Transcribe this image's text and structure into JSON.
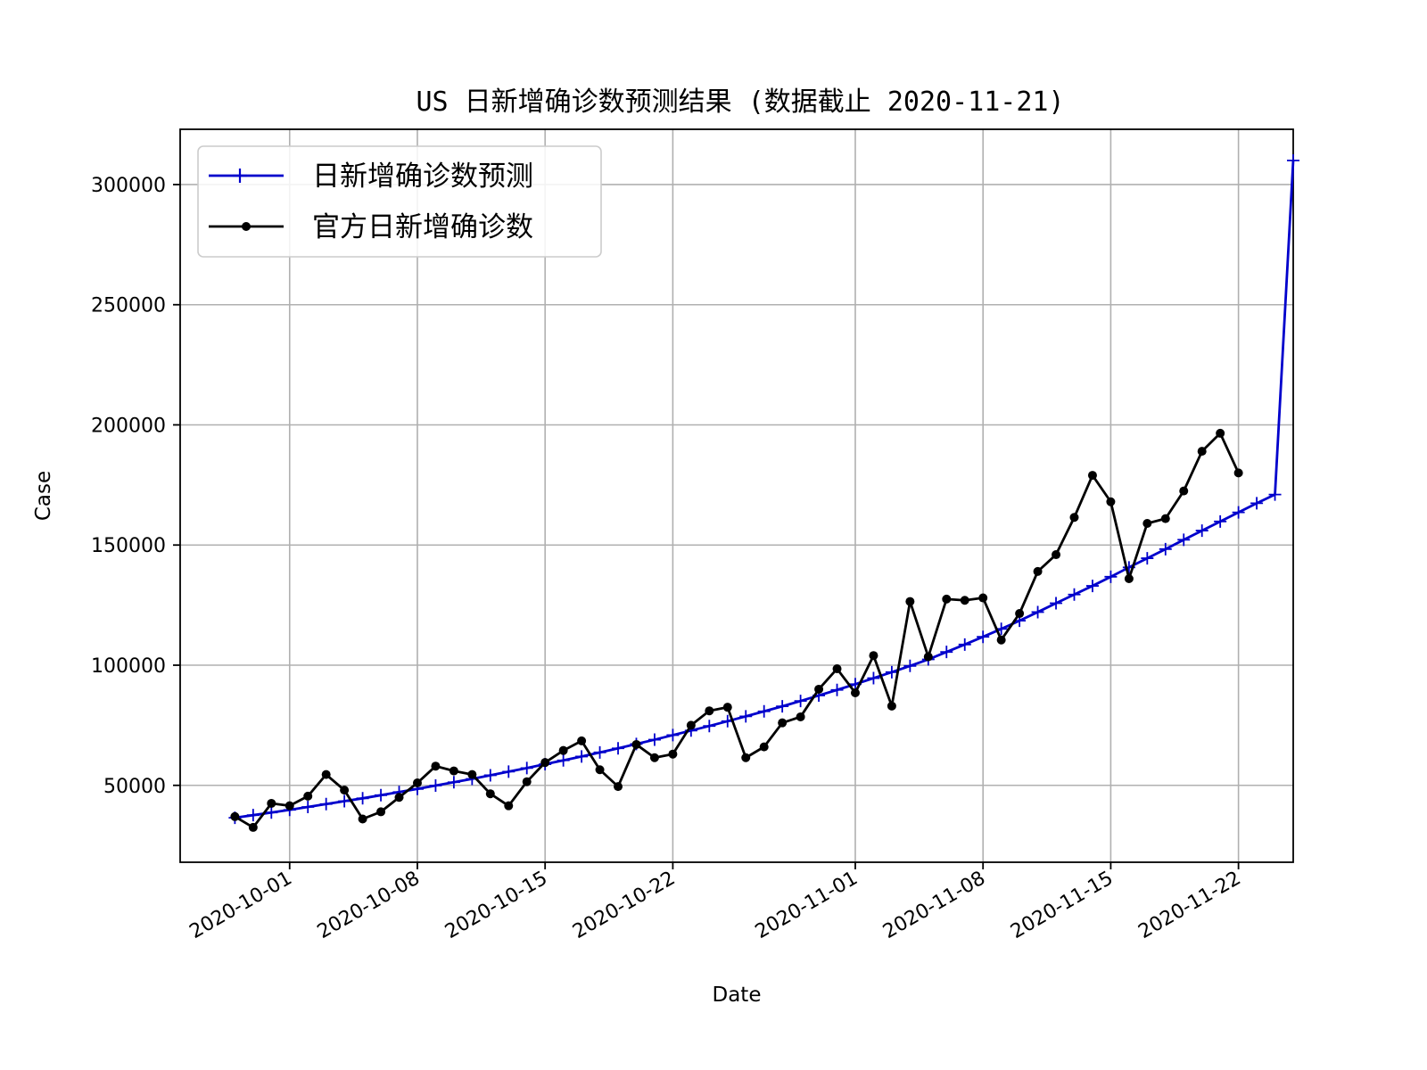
{
  "chart_data": {
    "type": "line",
    "title": "US 日新增确诊数预测结果 (数据截止 2020-11-21)",
    "xlabel": "Date",
    "ylabel": "Case",
    "x_start": "2020-09-28",
    "xlim": [
      "2020-09-25",
      "2020-11-25"
    ],
    "ylim": [
      18000,
      323000
    ],
    "x_ticks": [
      "2020-10-01",
      "2020-10-08",
      "2020-10-15",
      "2020-10-22",
      "2020-11-01",
      "2020-11-08",
      "2020-11-15",
      "2020-11-22"
    ],
    "y_ticks": [
      50000,
      100000,
      150000,
      200000,
      250000,
      300000
    ],
    "grid": true,
    "legend_position": "top-left",
    "series": [
      {
        "name": "日新增确诊数预测",
        "color": "#0000cc",
        "marker": "plus",
        "values": [
          36500,
          37600,
          38700,
          39800,
          41000,
          42200,
          43400,
          44600,
          45900,
          47200,
          48500,
          49900,
          51300,
          52700,
          54200,
          55700,
          57200,
          58800,
          60400,
          62000,
          63700,
          65400,
          67200,
          69000,
          70900,
          72800,
          74700,
          76700,
          78700,
          80800,
          82900,
          85100,
          87400,
          89700,
          92100,
          94600,
          97100,
          99700,
          102400,
          105500,
          108600,
          111800,
          115100,
          118500,
          122100,
          125800,
          129400,
          133000,
          136800,
          140700,
          144500,
          148300,
          152200,
          156000,
          159800,
          163600,
          167400,
          171000,
          310000
        ]
      },
      {
        "name": "官方日新增确诊数",
        "color": "#000000",
        "marker": "dot",
        "values": [
          37000,
          32500,
          42500,
          41500,
          45500,
          54500,
          48000,
          36000,
          39000,
          45000,
          51000,
          58000,
          56000,
          54500,
          46500,
          41500,
          51500,
          59500,
          64500,
          68500,
          56500,
          49500,
          67000,
          61500,
          63000,
          75000,
          81000,
          82500,
          61500,
          66000,
          76000,
          78500,
          90000,
          98500,
          88500,
          104000,
          83000,
          126500,
          103500,
          127500,
          127000,
          128000,
          110500,
          121500,
          139000,
          146000,
          161500,
          179000,
          168000,
          136000,
          159000,
          161000,
          172500,
          189000,
          196500,
          180000
        ]
      }
    ]
  }
}
